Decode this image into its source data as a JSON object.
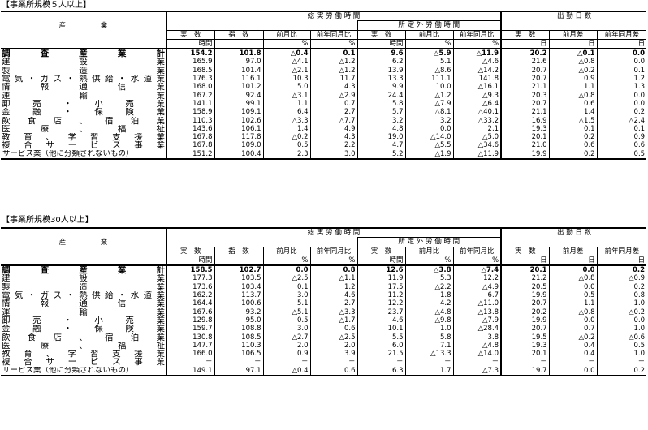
{
  "sections": [
    {
      "title": "【事業所規模５人以上】",
      "header": {
        "industry": "産　　　　　業",
        "total_hours": "総 実 労 働 時 間",
        "overtime": "所 定 外 労 働 時 間",
        "attendance": "出 勤 日 数",
        "cols": [
          "実　数",
          "指　数",
          "前月比",
          "前年同月比",
          "実　数",
          "前月比",
          "前年同月比",
          "実　数",
          "前月差",
          "前年同月差"
        ],
        "units": [
          "時間",
          "",
          "%",
          "%",
          "時間",
          "%",
          "%",
          "日",
          "日",
          "日"
        ]
      },
      "rows": [
        {
          "name": "調査産業計",
          "bold": true,
          "v": [
            "154.2",
            "101.8",
            "△0.4",
            "0.1",
            "9.6",
            "△5.9",
            "△11.9",
            "20.2",
            "△0.1",
            "0.0"
          ]
        },
        {
          "name": "建設業",
          "v": [
            "165.9",
            "97.0",
            "△4.1",
            "△1.2",
            "6.2",
            "5.1",
            "△4.6",
            "21.6",
            "△0.8",
            "0.0"
          ]
        },
        {
          "name": "製造業",
          "v": [
            "168.5",
            "101.4",
            "△2.1",
            "△1.2",
            "13.9",
            "△8.6",
            "△14.2",
            "20.7",
            "△0.2",
            "0.1"
          ]
        },
        {
          "name": "電気・ガス・熱供給・水道業",
          "v": [
            "176.3",
            "116.1",
            "10.3",
            "11.7",
            "13.3",
            "111.1",
            "141.8",
            "20.7",
            "0.9",
            "1.2"
          ]
        },
        {
          "name": "情報通信業",
          "v": [
            "168.0",
            "101.2",
            "5.0",
            "4.3",
            "9.9",
            "10.0",
            "△16.1",
            "21.1",
            "1.1",
            "1.3"
          ]
        },
        {
          "name": "運輸業",
          "v": [
            "167.2",
            "92.4",
            "△3.1",
            "△2.9",
            "24.4",
            "△1.2",
            "△9.3",
            "20.3",
            "△0.8",
            "0.0"
          ]
        },
        {
          "name": "卸売・小売業",
          "v": [
            "141.1",
            "99.1",
            "1.1",
            "0.7",
            "5.8",
            "△7.9",
            "△6.4",
            "20.7",
            "0.6",
            "0.0"
          ]
        },
        {
          "name": "金融・保険業",
          "v": [
            "158.9",
            "109.1",
            "6.4",
            "2.7",
            "5.7",
            "△8.1",
            "△40.1",
            "21.1",
            "1.4",
            "0.2"
          ]
        },
        {
          "name": "飲食店、宿泊業",
          "v": [
            "110.3",
            "102.6",
            "△3.3",
            "△7.7",
            "3.2",
            "3.2",
            "△33.2",
            "16.9",
            "△1.5",
            "△2.4"
          ]
        },
        {
          "name": "医療、福祉",
          "v": [
            "143.6",
            "106.1",
            "1.4",
            "4.9",
            "4.8",
            "0.0",
            "2.1",
            "19.3",
            "0.1",
            "0.1"
          ]
        },
        {
          "name": "教育、学習支援業",
          "v": [
            "167.8",
            "117.8",
            "△0.2",
            "4.3",
            "19.0",
            "△14.0",
            "△5.0",
            "20.1",
            "0.2",
            "0.9"
          ]
        },
        {
          "name": "複合サービス事業",
          "v": [
            "167.8",
            "109.0",
            "0.5",
            "2.2",
            "4.7",
            "△5.5",
            "△34.6",
            "21.0",
            "0.6",
            "0.6"
          ]
        },
        {
          "name": "サービス業（他に分類されないもの）",
          "free": true,
          "v": [
            "151.2",
            "100.4",
            "2.3",
            "3.0",
            "5.2",
            "△1.9",
            "△11.9",
            "19.9",
            "0.2",
            "0.5"
          ]
        }
      ]
    },
    {
      "title": "【事業所規模30人以上】",
      "header": {
        "industry": "産　　　　　業",
        "total_hours": "総 実 労 働 時 間",
        "overtime": "所 定 外 労 働 時 間",
        "attendance": "出 勤 日 数",
        "cols": [
          "実　数",
          "指　数",
          "前月比",
          "前年同月比",
          "実　数",
          "前月比",
          "前年同月比",
          "実　数",
          "前月差",
          "前年同月差"
        ],
        "units": [
          "時間",
          "",
          "%",
          "%",
          "時間",
          "%",
          "%",
          "日",
          "日",
          "日"
        ]
      },
      "rows": [
        {
          "name": "調査産業計",
          "bold": true,
          "v": [
            "158.5",
            "102.7",
            "0.0",
            "0.8",
            "12.6",
            "△3.8",
            "△7.4",
            "20.1",
            "0.0",
            "0.2"
          ]
        },
        {
          "name": "建設業",
          "v": [
            "177.3",
            "103.5",
            "△2.5",
            "△1.1",
            "11.9",
            "5.3",
            "12.2",
            "21.2",
            "△0.8",
            "△0.9"
          ]
        },
        {
          "name": "製造業",
          "v": [
            "173.6",
            "103.4",
            "0.1",
            "1.2",
            "17.5",
            "△2.2",
            "△4.9",
            "20.5",
            "0.0",
            "0.2"
          ]
        },
        {
          "name": "電気・ガス・熱供給・水道業",
          "v": [
            "162.2",
            "113.7",
            "3.0",
            "4.6",
            "11.2",
            "1.8",
            "6.7",
            "19.9",
            "0.5",
            "0.8"
          ]
        },
        {
          "name": "情報通信業",
          "v": [
            "164.4",
            "100.6",
            "5.1",
            "2.7",
            "12.2",
            "4.2",
            "△11.0",
            "20.7",
            "1.1",
            "1.0"
          ]
        },
        {
          "name": "運輸業",
          "v": [
            "167.6",
            "93.2",
            "△5.1",
            "△3.3",
            "23.7",
            "△4.8",
            "△13.8",
            "20.2",
            "△0.8",
            "△0.2"
          ]
        },
        {
          "name": "卸売・小売業",
          "v": [
            "129.8",
            "95.0",
            "0.5",
            "△1.7",
            "4.6",
            "△9.8",
            "△7.9",
            "19.9",
            "0.0",
            "0.0"
          ]
        },
        {
          "name": "金融・保険業",
          "v": [
            "159.7",
            "108.8",
            "3.0",
            "0.6",
            "10.1",
            "1.0",
            "△28.4",
            "20.7",
            "0.7",
            "1.0"
          ]
        },
        {
          "name": "飲食店、宿泊業",
          "v": [
            "130.8",
            "108.5",
            "△2.7",
            "△2.5",
            "5.5",
            "5.8",
            "3.8",
            "19.5",
            "△0.2",
            "△0.6"
          ]
        },
        {
          "name": "医療、福祉",
          "v": [
            "147.7",
            "110.3",
            "2.0",
            "2.0",
            "6.0",
            "7.1",
            "△4.8",
            "19.3",
            "0.4",
            "0.5"
          ]
        },
        {
          "name": "教育、学習支援業",
          "v": [
            "166.0",
            "106.5",
            "0.9",
            "3.9",
            "21.5",
            "△13.3",
            "△14.0",
            "20.1",
            "0.4",
            "1.0"
          ]
        },
        {
          "name": "複合サービス事業",
          "v": [
            "－",
            "－",
            "－",
            "－",
            "－",
            "－",
            "－",
            "－",
            "－",
            "－"
          ]
        },
        {
          "name": "サービス業（他に分類されないもの）",
          "free": true,
          "v": [
            "149.1",
            "97.1",
            "△0.4",
            "0.6",
            "6.3",
            "1.7",
            "△7.3",
            "19.7",
            "0.0",
            "0.2"
          ]
        }
      ]
    }
  ]
}
